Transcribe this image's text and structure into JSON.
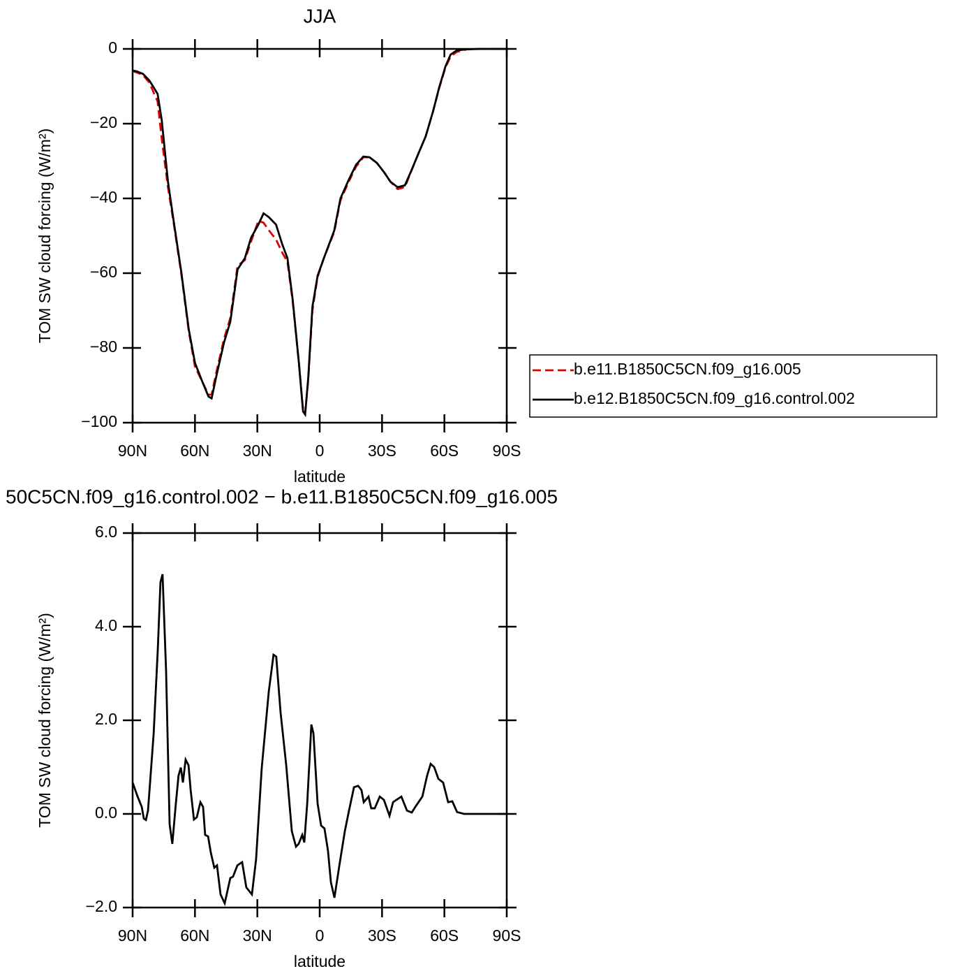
{
  "chart_data": [
    {
      "type": "line",
      "title": "JJA",
      "xlabel": "latitude",
      "ylabel": "TOM SW cloud forcing (W/m²)",
      "x": [
        90,
        88,
        85,
        82,
        78,
        76,
        73,
        70,
        66.5,
        63,
        60,
        56.5,
        53.5,
        52,
        49.5,
        46,
        43,
        39.5,
        36,
        33,
        29.5,
        27,
        24.5,
        21,
        18,
        15.5,
        13,
        10,
        8,
        7,
        5.5,
        3.5,
        1,
        -2,
        -7,
        -10,
        -14,
        -17.5,
        -21,
        -24,
        -27.5,
        -31,
        -34,
        -37.5,
        -41,
        -44,
        -47.5,
        -51,
        -54.5,
        -57.5,
        -60.5,
        -63,
        -66,
        -71,
        -78,
        -90
      ],
      "series": [
        {
          "name": "b.e11.B1850C5CN.f09_g16.005",
          "color": "#e00000",
          "line_style": "dashed",
          "values": [
            -6,
            -6.3,
            -7,
            -9,
            -14,
            -24,
            -37,
            -47.5,
            -60.5,
            -75.5,
            -85,
            -89,
            -92.5,
            -92.5,
            -86,
            -77.5,
            -72,
            -58,
            -56.5,
            -51.5,
            -46,
            -46.5,
            -48.5,
            -51,
            -54.5,
            -57,
            -67.5,
            -84,
            -96.5,
            -97.5,
            -88.5,
            -70,
            -61,
            -56,
            -49,
            -40.5,
            -35.5,
            -31.5,
            -29,
            -29,
            -30.5,
            -33,
            -35.5,
            -37.5,
            -37,
            -32.8,
            -28,
            -23.4,
            -16.8,
            -10.5,
            -5,
            -2,
            -0.8,
            -0.1,
            0,
            0
          ]
        },
        {
          "name": "b.e12.B1850C5CN.f09_g16.control.002",
          "color": "#000000",
          "line_style": "solid",
          "values": [
            -5.8,
            -6,
            -6.7,
            -8.4,
            -12,
            -19,
            -35.5,
            -47,
            -60,
            -75,
            -84,
            -89,
            -93,
            -93.5,
            -87,
            -78.5,
            -73,
            -59,
            -56,
            -50.5,
            -47,
            -44,
            -45,
            -47,
            -52.3,
            -56,
            -67,
            -84,
            -97,
            -97.8,
            -88,
            -69,
            -60.7,
            -56,
            -48.6,
            -40,
            -35,
            -31,
            -28.8,
            -29,
            -30.5,
            -33,
            -35.5,
            -37,
            -36.5,
            -32.7,
            -28,
            -23.4,
            -16.8,
            -10.3,
            -4.7,
            -1.5,
            -0.4,
            -0.1,
            0,
            0
          ]
        }
      ],
      "xlim": [
        90,
        -90
      ],
      "xticks": [
        {
          "value": 90,
          "label": "90N"
        },
        {
          "value": 60,
          "label": "60N"
        },
        {
          "value": 30,
          "label": "30N"
        },
        0,
        {
          "value": -30,
          "label": "30S"
        },
        {
          "value": -60,
          "label": "60S"
        },
        {
          "value": -90,
          "label": "90S"
        }
      ],
      "ylim": [
        -100,
        0
      ],
      "yticks": [
        0,
        {
          "value": -20,
          "label": "−20"
        },
        {
          "value": -40,
          "label": "−40"
        },
        {
          "value": -60,
          "label": "−60"
        },
        {
          "value": -80,
          "label": "−80"
        },
        {
          "value": -100,
          "label": "−100"
        }
      ],
      "legend": "right"
    },
    {
      "type": "line",
      "title": "50C5CN.f09_g16.control.002 − b.e11.B1850C5CN.f09_g16.005",
      "xlabel": "latitude",
      "ylabel": "TOM SW cloud forcing (W/m²)",
      "x": [
        90,
        87.6,
        85.6,
        84.6,
        83.6,
        82.6,
        79.9,
        77.9,
        76.6,
        75.6,
        73.9,
        72.2,
        70.9,
        69.2,
        67.9,
        66.8,
        65.8,
        64.5,
        63.1,
        62.1,
        60.5,
        59.1,
        57.4,
        56.1,
        55.1,
        53.7,
        52.4,
        50.7,
        49.4,
        47.7,
        45.7,
        43,
        41.7,
        39.6,
        37.3,
        35.3,
        32.6,
        30.6,
        27.9,
        24.5,
        22.2,
        20.9,
        18.8,
        16.1,
        13.4,
        11.4,
        10.1,
        8.4,
        7.4,
        6,
        4,
        3,
        1,
        -0.7,
        -2.3,
        -4,
        -5.4,
        -7.1,
        -9.4,
        -12.1,
        -14.1,
        -16.5,
        -18.5,
        -20.1,
        -21.2,
        -23.5,
        -24.8,
        -26.5,
        -28.9,
        -30.9,
        -33.6,
        -35.3,
        -36.9,
        -39.3,
        -42,
        -44.3,
        -46,
        -49.4,
        -51.7,
        -53.4,
        -55.1,
        -57.1,
        -59.4,
        -61.8,
        -63.8,
        -66.1,
        -69.5,
        -90
      ],
      "color": "#000000",
      "values": [
        0.67,
        0.37,
        0.15,
        -0.1,
        -0.13,
        0.07,
        1.7,
        3.5,
        4.95,
        5.12,
        3.06,
        -0.22,
        -0.64,
        0.22,
        0.82,
        0.99,
        0.67,
        1.16,
        1.04,
        0.52,
        -0.12,
        -0.07,
        0.25,
        0.15,
        -0.45,
        -0.48,
        -0.82,
        -1.15,
        -1.1,
        -1.72,
        -1.91,
        -1.37,
        -1.34,
        -1.1,
        -1.03,
        -1.57,
        -1.72,
        -0.97,
        0.97,
        2.61,
        3.4,
        3.36,
        2.16,
        1.04,
        -0.37,
        -0.7,
        -0.64,
        -0.45,
        -0.61,
        0.22,
        1.91,
        1.72,
        0.22,
        -0.25,
        -0.31,
        -0.79,
        -1.46,
        -1.79,
        -1.12,
        -0.37,
        0.07,
        0.57,
        0.6,
        0.51,
        0.25,
        0.37,
        0.12,
        0.12,
        0.37,
        0.3,
        -0.04,
        0.25,
        0.3,
        0.37,
        0.07,
        0.03,
        0.15,
        0.37,
        0.82,
        1.07,
        1,
        0.75,
        0.67,
        0.25,
        0.27,
        0.04,
        0,
        0
      ],
      "xlim": [
        90,
        -90
      ],
      "xticks": [
        {
          "value": 90,
          "label": "90N"
        },
        {
          "value": 60,
          "label": "60N"
        },
        {
          "value": 30,
          "label": "30N"
        },
        0,
        {
          "value": -30,
          "label": "30S"
        },
        {
          "value": -60,
          "label": "60S"
        },
        {
          "value": -90,
          "label": "90S"
        }
      ],
      "ylim": [
        -2,
        6
      ],
      "yticks": [
        {
          "value": 6,
          "label": "6.0"
        },
        {
          "value": 4,
          "label": "4.0"
        },
        {
          "value": 2,
          "label": "2.0"
        },
        {
          "value": 0,
          "label": "0.0"
        },
        {
          "value": -2,
          "label": "−2.0"
        }
      ]
    }
  ]
}
